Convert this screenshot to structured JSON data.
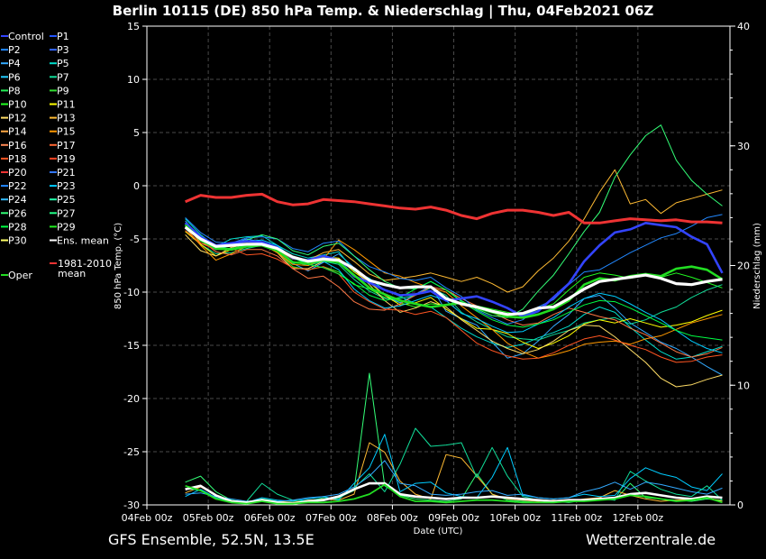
{
  "header": {
    "title": "Berlin 10115 (DE)  850 hPa Temp. & Niederschlag | Thu, 04Feb2021 06Z"
  },
  "footer": {
    "left": "GFS Ensemble, 52.5N, 13.5E",
    "right": "Wetterzentrale.de"
  },
  "colors": {
    "background": "#000000",
    "grid": "#555555",
    "mean": "#ffffff",
    "oper": "#22dd22",
    "climate": "#ee3333",
    "control": "#3344ff"
  },
  "chart_data": {
    "type": "line",
    "title": "Berlin 10115 (DE)  850 hPa Temp. & Niederschlag | Thu, 04Feb2021 06Z",
    "xlabel": "Date (UTC)",
    "ylabel": "850 hPa Temp. (°C)",
    "y2label": "Niederschlag (mm)",
    "ylim": [
      -30,
      15
    ],
    "y2lim": [
      0,
      40
    ],
    "yticks": [
      "15",
      "10",
      "5",
      "0",
      "-5",
      "-10",
      "-15",
      "-20",
      "-25",
      "-30"
    ],
    "y2ticks": [
      "40",
      "30",
      "20",
      "10",
      "0"
    ],
    "x_ticks": [
      "04Feb 00z",
      "05Feb 00z",
      "06Feb 00z",
      "07Feb 00z",
      "08Feb 00z",
      "09Feb 00z",
      "10Feb 00z",
      "11Feb 00z",
      "12Feb 00z"
    ],
    "grid": true,
    "legend_position": "left",
    "legend": [
      [
        "Control",
        "P1"
      ],
      [
        "P2",
        "P3"
      ],
      [
        "P4",
        "P5"
      ],
      [
        "P6",
        "P7"
      ],
      [
        "P8",
        "P9"
      ],
      [
        "P10",
        "P11"
      ],
      [
        "P12",
        "P13"
      ],
      [
        "P14",
        "P15"
      ],
      [
        "P16",
        "P17"
      ],
      [
        "P18",
        "P19"
      ],
      [
        "P20",
        "P21"
      ],
      [
        "P22",
        "P23"
      ],
      [
        "P24",
        "P25"
      ],
      [
        "P26",
        "P27"
      ],
      [
        "P28",
        "P29"
      ],
      [
        "P30",
        "Ens. mean"
      ]
    ],
    "legend_extra": {
      "climate_line1": "1981-2010",
      "climate_line2": "mean",
      "oper": "Oper"
    },
    "x_hours": [
      15,
      21,
      27,
      33,
      39,
      45,
      51,
      57,
      63,
      69,
      75,
      81,
      87,
      93,
      99,
      105,
      111,
      117,
      123,
      129,
      135,
      141,
      147,
      153,
      159,
      165,
      171,
      177,
      183,
      189,
      195,
      201,
      207,
      213,
      219,
      225
    ],
    "series": [
      {
        "name": "Ens. mean",
        "role": "mean",
        "color": "#ffffff",
        "values": [
          -3.9,
          -5.0,
          -5.7,
          -5.6,
          -5.5,
          -5.5,
          -5.9,
          -6.7,
          -7.1,
          -6.9,
          -7.0,
          -7.8,
          -8.9,
          -9.3,
          -9.6,
          -9.5,
          -9.5,
          -10.6,
          -11.1,
          -11.4,
          -11.8,
          -12.1,
          -12.0,
          -11.5,
          -11.4,
          -10.6,
          -9.7,
          -9.0,
          -8.8,
          -8.6,
          -8.4,
          -8.7,
          -9.2,
          -9.3,
          -9.0,
          -8.8
        ]
      },
      {
        "name": "1981-2010 mean",
        "role": "climate",
        "color": "#ee3333",
        "values": [
          -1.5,
          -0.9,
          -1.1,
          -1.1,
          -0.9,
          -0.8,
          -1.5,
          -1.8,
          -1.7,
          -1.3,
          -1.4,
          -1.5,
          -1.7,
          -1.9,
          -2.1,
          -2.2,
          -2.0,
          -2.3,
          -2.8,
          -3.1,
          -2.6,
          -2.3,
          -2.3,
          -2.5,
          -2.8,
          -2.5,
          -3.5,
          -3.5,
          -3.3,
          -3.1,
          -3.2,
          -3.3,
          -3.2,
          -3.4,
          -3.4,
          -3.5
        ]
      },
      {
        "name": "Oper",
        "role": "oper",
        "color": "#22dd22",
        "values": [
          -3.7,
          -5.1,
          -5.9,
          -6.0,
          -5.7,
          -5.6,
          -6.1,
          -7.2,
          -7.3,
          -7.0,
          -7.2,
          -8.4,
          -9.6,
          -10.2,
          -10.8,
          -11.1,
          -11.4,
          -11.2,
          -11.0,
          -11.5,
          -11.9,
          -12.3,
          -12.4,
          -12.1,
          -11.6,
          -10.8,
          -9.3,
          -8.7,
          -8.9,
          -8.5,
          -8.3,
          -8.5,
          -7.8,
          -7.6,
          -7.9,
          -8.8
        ]
      },
      {
        "name": "Control",
        "role": "control",
        "color": "#3344ff",
        "values": [
          -3.5,
          -4.8,
          -5.6,
          -5.4,
          -5.2,
          -5.3,
          -5.8,
          -6.8,
          -7.0,
          -6.6,
          -7.0,
          -8.5,
          -9.1,
          -9.8,
          -10.3,
          -10.2,
          -9.9,
          -10.8,
          -10.6,
          -10.4,
          -10.9,
          -11.5,
          -12.3,
          -11.8,
          -10.5,
          -9.2,
          -7.1,
          -5.6,
          -4.4,
          -4.1,
          -3.5,
          -3.7,
          -3.9,
          -4.8,
          -5.5,
          -8.2
        ]
      },
      {
        "name": "P10",
        "color": "#22ff22",
        "values": [
          -3.8,
          -5.2,
          -6.0,
          -6.0,
          -5.6,
          -5.6,
          -6.2,
          -7.6,
          -7.9,
          -7.6,
          -8.1,
          -9.3,
          -9.7,
          -10.5,
          -11.0,
          -11.4,
          -11.1,
          -11.2,
          -11.0,
          -11.3,
          -11.6,
          -11.9,
          -12.2,
          -11.6,
          -11.1,
          -9.8,
          -8.6,
          -8.2,
          -8.4,
          -8.7,
          -8.4,
          -8.6,
          -8.2,
          -8.6,
          -9.1,
          -9.6
        ]
      },
      {
        "name": "P4",
        "color": "#33aaff",
        "values": [
          -3.3,
          -5.0,
          -5.9,
          -5.5,
          -5.0,
          -5.3,
          -6.1,
          -7.3,
          -8.0,
          -7.2,
          -6.4,
          -7.7,
          -9.0,
          -10.3,
          -11.0,
          -10.2,
          -9.4,
          -11.8,
          -12.5,
          -13.1,
          -14.7,
          -16.2,
          -15.8,
          -14.6,
          -13.2,
          -12.1,
          -10.6,
          -10.3,
          -11.5,
          -12.9,
          -13.8,
          -14.7,
          -15.3,
          -16.1,
          -17.0,
          -17.8
        ]
      },
      {
        "name": "P5",
        "color": "#00ddcc",
        "values": [
          -3.1,
          -4.6,
          -5.7,
          -5.0,
          -4.8,
          -4.7,
          -5.6,
          -6.4,
          -6.8,
          -6.5,
          -6.2,
          -8.0,
          -8.7,
          -9.8,
          -10.4,
          -11.1,
          -11.4,
          -12.4,
          -13.4,
          -14.2,
          -14.8,
          -15.2,
          -14.9,
          -14.3,
          -13.8,
          -13.2,
          -12.1,
          -11.4,
          -11.9,
          -13.3,
          -14.5,
          -15.6,
          -16.3,
          -16.1,
          -15.6,
          -15.1
        ]
      },
      {
        "name": "P7",
        "color": "#11dd99",
        "values": [
          -4.0,
          -5.5,
          -6.4,
          -6.3,
          -5.9,
          -5.6,
          -6.0,
          -7.1,
          -7.5,
          -7.1,
          -7.4,
          -8.8,
          -9.9,
          -10.6,
          -10.6,
          -10.3,
          -9.6,
          -10.3,
          -11.9,
          -12.8,
          -13.5,
          -14.2,
          -14.4,
          -14.5,
          -14.0,
          -13.6,
          -12.9,
          -12.6,
          -12.4,
          -13.0,
          -12.6,
          -11.9,
          -11.4,
          -10.5,
          -9.8,
          -9.3
        ]
      },
      {
        "name": "P11",
        "color": "#ffff00",
        "values": [
          -4.3,
          -5.5,
          -6.6,
          -6.0,
          -5.6,
          -5.5,
          -5.9,
          -6.9,
          -7.1,
          -6.7,
          -6.8,
          -8.1,
          -9.1,
          -10.3,
          -11.2,
          -11.0,
          -10.5,
          -11.6,
          -12.5,
          -13.4,
          -13.5,
          -13.9,
          -14.7,
          -15.3,
          -14.8,
          -14.1,
          -13.0,
          -12.6,
          -12.9,
          -12.5,
          -12.9,
          -13.3,
          -13.1,
          -12.8,
          -12.2,
          -11.7
        ]
      },
      {
        "name": "P12",
        "color": "#ffdd66",
        "values": [
          -4.6,
          -6.1,
          -6.6,
          -5.8,
          -5.5,
          -5.4,
          -6.3,
          -7.8,
          -7.8,
          -7.1,
          -6.9,
          -7.9,
          -9.3,
          -10.8,
          -11.9,
          -11.5,
          -10.9,
          -11.4,
          -12.6,
          -13.6,
          -14.6,
          -15.3,
          -15.8,
          -15.4,
          -14.6,
          -13.6,
          -13.1,
          -13.2,
          -14.2,
          -15.4,
          -16.6,
          -18.1,
          -18.9,
          -18.7,
          -18.2,
          -17.8
        ]
      },
      {
        "name": "P13",
        "color": "#ffbb33",
        "values": [
          -3.6,
          -5.4,
          -5.8,
          -5.7,
          -5.6,
          -5.3,
          -6.0,
          -6.9,
          -7.0,
          -6.3,
          -6.0,
          -7.1,
          -8.3,
          -8.9,
          -8.7,
          -8.5,
          -8.2,
          -8.6,
          -9.0,
          -8.6,
          -9.2,
          -10.0,
          -9.5,
          -8.0,
          -6.8,
          -5.2,
          -3.1,
          -0.6,
          1.5,
          -1.7,
          -1.3,
          -2.6,
          -1.6,
          -1.2,
          -0.8,
          -0.4
        ]
      },
      {
        "name": "P15",
        "color": "#ff9900",
        "values": [
          -3.9,
          -5.6,
          -7.0,
          -6.4,
          -5.7,
          -5.5,
          -6.3,
          -7.4,
          -7.5,
          -6.9,
          -5.1,
          -6.0,
          -7.1,
          -8.2,
          -8.5,
          -9.1,
          -9.6,
          -10.0,
          -11.3,
          -12.4,
          -13.5,
          -14.8,
          -15.6,
          -16.2,
          -15.9,
          -15.5,
          -14.9,
          -14.7,
          -14.6,
          -14.9,
          -14.4,
          -14.1,
          -13.5,
          -12.9,
          -12.5,
          -12.1
        ]
      },
      {
        "name": "P16",
        "color": "#ff7744",
        "values": [
          -3.9,
          -5.1,
          -6.2,
          -6.5,
          -6.0,
          -6.0,
          -6.6,
          -7.8,
          -8.7,
          -8.5,
          -9.5,
          -10.9,
          -11.6,
          -11.7,
          -11.1,
          -10.3,
          -9.5,
          -9.8,
          -10.6,
          -11.3,
          -11.9,
          -12.6,
          -13.1,
          -12.9,
          -12.1,
          -11.5,
          -11.9,
          -12.3,
          -12.6,
          -13.4,
          -14.0,
          -14.8,
          -15.6,
          -16.1,
          -15.8,
          -15.2
        ]
      },
      {
        "name": "P18",
        "color": "#ff5522",
        "values": [
          -4.2,
          -5.4,
          -6.0,
          -5.9,
          -6.5,
          -6.4,
          -6.9,
          -7.7,
          -7.9,
          -7.6,
          -8.3,
          -10.0,
          -10.9,
          -11.6,
          -11.7,
          -12.1,
          -11.8,
          -12.4,
          -13.6,
          -14.8,
          -15.5,
          -16.0,
          -16.3,
          -16.2,
          -15.7,
          -15.0,
          -14.4,
          -14.1,
          -14.5,
          -15.0,
          -15.4,
          -16.1,
          -16.6,
          -16.5,
          -16.1,
          -15.9
        ]
      },
      {
        "name": "P22",
        "color": "#2288ff",
        "values": [
          -3.0,
          -4.4,
          -5.3,
          -5.4,
          -4.9,
          -4.8,
          -5.0,
          -5.9,
          -6.2,
          -5.4,
          -5.2,
          -6.6,
          -7.6,
          -8.1,
          -8.7,
          -8.9,
          -8.6,
          -9.6,
          -10.4,
          -11.7,
          -12.4,
          -13.0,
          -12.6,
          -11.4,
          -10.7,
          -9.3,
          -8.1,
          -7.9,
          -7.1,
          -6.3,
          -5.6,
          -4.9,
          -4.5,
          -3.8,
          -3.0,
          -2.7
        ]
      },
      {
        "name": "P23",
        "color": "#00ccff",
        "values": [
          -3.5,
          -5.1,
          -6.0,
          -5.6,
          -5.2,
          -5.1,
          -5.6,
          -6.8,
          -7.3,
          -7.1,
          -7.9,
          -9.7,
          -10.8,
          -11.5,
          -11.3,
          -10.8,
          -10.3,
          -10.8,
          -12.0,
          -12.5,
          -13.2,
          -13.8,
          -13.7,
          -13.0,
          -12.4,
          -11.4,
          -10.6,
          -10.1,
          -10.4,
          -11.1,
          -11.9,
          -12.6,
          -13.6,
          -14.6,
          -15.3,
          -15.7
        ]
      },
      {
        "name": "P26",
        "color": "#33ff77",
        "values": [
          -3.6,
          -4.8,
          -5.8,
          -5.6,
          -5.1,
          -4.6,
          -5.0,
          -6.1,
          -6.5,
          -5.7,
          -5.4,
          -6.6,
          -7.9,
          -9.0,
          -9.6,
          -9.7,
          -9.0,
          -9.8,
          -10.8,
          -11.6,
          -12.2,
          -12.4,
          -11.6,
          -9.9,
          -8.4,
          -6.4,
          -4.3,
          -2.5,
          0.8,
          2.9,
          4.7,
          5.7,
          2.4,
          0.5,
          -0.8,
          -1.9
        ]
      },
      {
        "name": "P28",
        "color": "#00ff44",
        "values": [
          -3.8,
          -5.1,
          -5.8,
          -5.9,
          -5.6,
          -5.4,
          -5.8,
          -6.8,
          -7.4,
          -7.7,
          -8.3,
          -9.2,
          -10.3,
          -10.8,
          -10.5,
          -9.7,
          -9.0,
          -9.8,
          -10.9,
          -11.8,
          -12.6,
          -13.1,
          -13.3,
          -13.0,
          -12.6,
          -11.9,
          -11.2,
          -10.8,
          -10.9,
          -11.5,
          -12.2,
          -12.9,
          -13.6,
          -14.1,
          -14.3,
          -14.5
        ]
      }
    ],
    "precip_series": [
      {
        "name": "Ens. mean",
        "role": "mean",
        "color": "#ffffff",
        "values": [
          1.3,
          1.6,
          0.8,
          0.3,
          0.2,
          0.4,
          0.2,
          0.1,
          0.3,
          0.4,
          0.7,
          1.3,
          1.8,
          1.8,
          0.9,
          0.7,
          0.6,
          0.5,
          0.6,
          0.6,
          0.7,
          0.6,
          0.5,
          0.4,
          0.3,
          0.4,
          0.4,
          0.5,
          0.6,
          0.9,
          1.0,
          0.8,
          0.6,
          0.5,
          0.7,
          0.6
        ]
      },
      {
        "name": "Oper",
        "role": "oper",
        "color": "#22dd22",
        "values": [
          1.6,
          1.2,
          0.5,
          0.2,
          0.1,
          0.3,
          0.1,
          0.1,
          0.2,
          0.2,
          0.3,
          0.5,
          0.9,
          1.7,
          0.7,
          0.3,
          0.3,
          0.2,
          0.3,
          0.4,
          0.4,
          0.3,
          0.2,
          0.2,
          0.2,
          0.3,
          0.3,
          0.4,
          0.5,
          0.8,
          0.7,
          0.5,
          0.3,
          0.4,
          0.6,
          0.2
        ]
      },
      {
        "name": "P26",
        "color": "#33ff77",
        "values": [
          1.9,
          2.4,
          1.1,
          0.4,
          0.2,
          0.5,
          0.3,
          0.1,
          0.2,
          0.4,
          0.6,
          1.2,
          11.0,
          1.6,
          0.8,
          0.5,
          0.4,
          0.3,
          0.5,
          2.6,
          0.9,
          0.4,
          0.3,
          0.2,
          0.3,
          0.2,
          0.4,
          0.6,
          0.4,
          1.8,
          0.6,
          0.5,
          0.4,
          0.3,
          0.5,
          0.4
        ]
      },
      {
        "name": "P13",
        "color": "#ffbb33",
        "values": [
          1.0,
          1.5,
          0.8,
          0.2,
          0.2,
          0.3,
          0.3,
          0.2,
          0.4,
          0.5,
          0.4,
          0.9,
          5.2,
          4.4,
          2.0,
          0.9,
          0.5,
          4.2,
          3.9,
          2.4,
          0.9,
          0.5,
          0.4,
          0.3,
          0.4,
          0.3,
          0.5,
          0.6,
          1.2,
          0.8,
          0.5,
          0.3,
          0.4,
          0.5,
          0.6,
          0.3
        ]
      },
      {
        "name": "P23",
        "color": "#00ccff",
        "values": [
          0.7,
          1.3,
          0.6,
          0.3,
          0.2,
          0.6,
          0.4,
          0.3,
          0.5,
          0.7,
          0.4,
          1.8,
          3.1,
          5.9,
          1.1,
          1.8,
          1.9,
          1.0,
          0.7,
          0.6,
          2.3,
          4.8,
          0.8,
          0.6,
          0.5,
          0.6,
          0.9,
          0.7,
          0.8,
          2.2,
          3.1,
          2.6,
          2.3,
          1.5,
          1.2,
          2.6
        ]
      },
      {
        "name": "P7",
        "color": "#11dd99",
        "values": [
          1.4,
          1.2,
          0.6,
          0.2,
          0.3,
          1.8,
          0.9,
          0.4,
          0.3,
          0.6,
          0.5,
          1.4,
          2.6,
          1.1,
          3.4,
          6.4,
          4.9,
          5.0,
          5.2,
          2.3,
          4.8,
          2.4,
          0.7,
          0.4,
          0.3,
          0.4,
          0.3,
          0.5,
          0.4,
          2.8,
          2.0,
          1.3,
          0.9,
          0.7,
          1.6,
          0.4
        ]
      },
      {
        "name": "P4",
        "color": "#33aaff",
        "values": [
          0.9,
          1.0,
          0.7,
          0.5,
          0.3,
          0.4,
          0.3,
          0.4,
          0.6,
          0.7,
          0.9,
          1.5,
          2.4,
          3.7,
          1.8,
          1.6,
          0.9,
          0.8,
          0.9,
          1.1,
          1.2,
          0.8,
          0.9,
          0.6,
          0.5,
          0.6,
          1.1,
          1.4,
          1.9,
          1.3,
          1.9,
          1.7,
          1.4,
          1.1,
          0.9,
          1.4
        ]
      }
    ]
  }
}
